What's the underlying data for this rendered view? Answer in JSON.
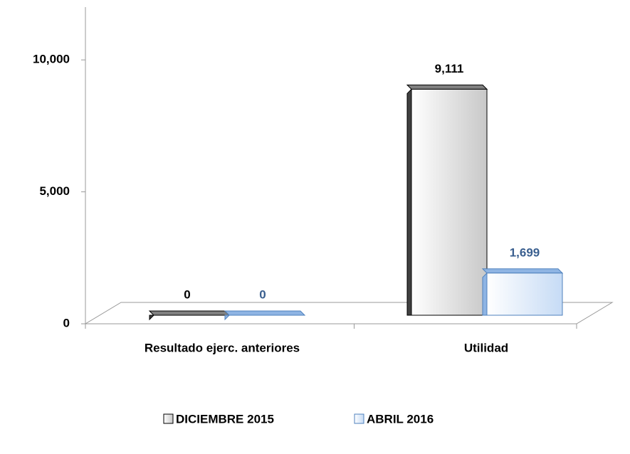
{
  "chart_data": {
    "type": "bar3d",
    "categories": [
      "Resultado ejerc. anteriores",
      "Utilidad"
    ],
    "series": [
      {
        "name": "DICIEMBRE 2015",
        "color": "#d9d9d9",
        "values": [
          0,
          9111
        ],
        "value_labels": [
          "0",
          "9,111"
        ]
      },
      {
        "name": "ABRIL 2016",
        "color": "#dbe9fb",
        "values": [
          0,
          1699
        ],
        "value_labels": [
          "0",
          "1,699"
        ]
      }
    ],
    "ylim": [
      0,
      12000
    ],
    "yticks": [
      0,
      {
        "value": 5000,
        "label": "5,000"
      },
      {
        "value": 10000,
        "label": "10,000"
      }
    ],
    "legend": "bottom"
  }
}
